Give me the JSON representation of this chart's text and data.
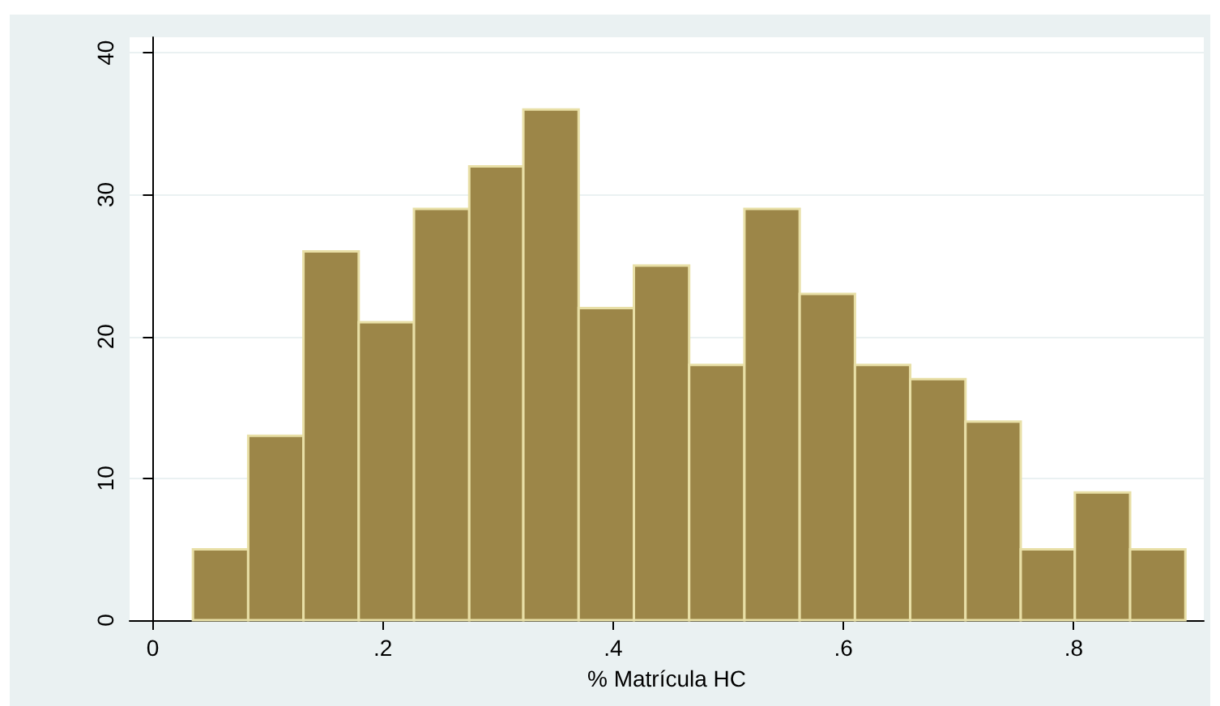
{
  "chart_data": {
    "type": "histogram",
    "xlabel": "% Matrícula HC",
    "bins": [
      0.035,
      0.083,
      0.131,
      0.179,
      0.227,
      0.275,
      0.322,
      0.37,
      0.418,
      0.466,
      0.514,
      0.562,
      0.61,
      0.658,
      0.706,
      0.754,
      0.801,
      0.849,
      0.897
    ],
    "values": [
      5,
      13,
      26,
      21,
      29,
      32,
      36,
      22,
      25,
      18,
      29,
      23,
      18,
      17,
      14,
      5,
      9,
      5
    ],
    "color": "#9c8648",
    "xlim": [
      -0.02,
      0.913
    ],
    "xticks": [
      {
        "value": 0,
        "label": "0"
      },
      {
        "value": 0.2,
        "label": ".2"
      },
      {
        "value": 0.4,
        "label": ".4"
      },
      {
        "value": 0.6,
        "label": ".6"
      },
      {
        "value": 0.8,
        "label": ".8"
      }
    ],
    "ylim": [
      0,
      41.1
    ],
    "yticks": [
      0,
      10,
      20,
      30,
      40
    ],
    "grid": "y"
  }
}
